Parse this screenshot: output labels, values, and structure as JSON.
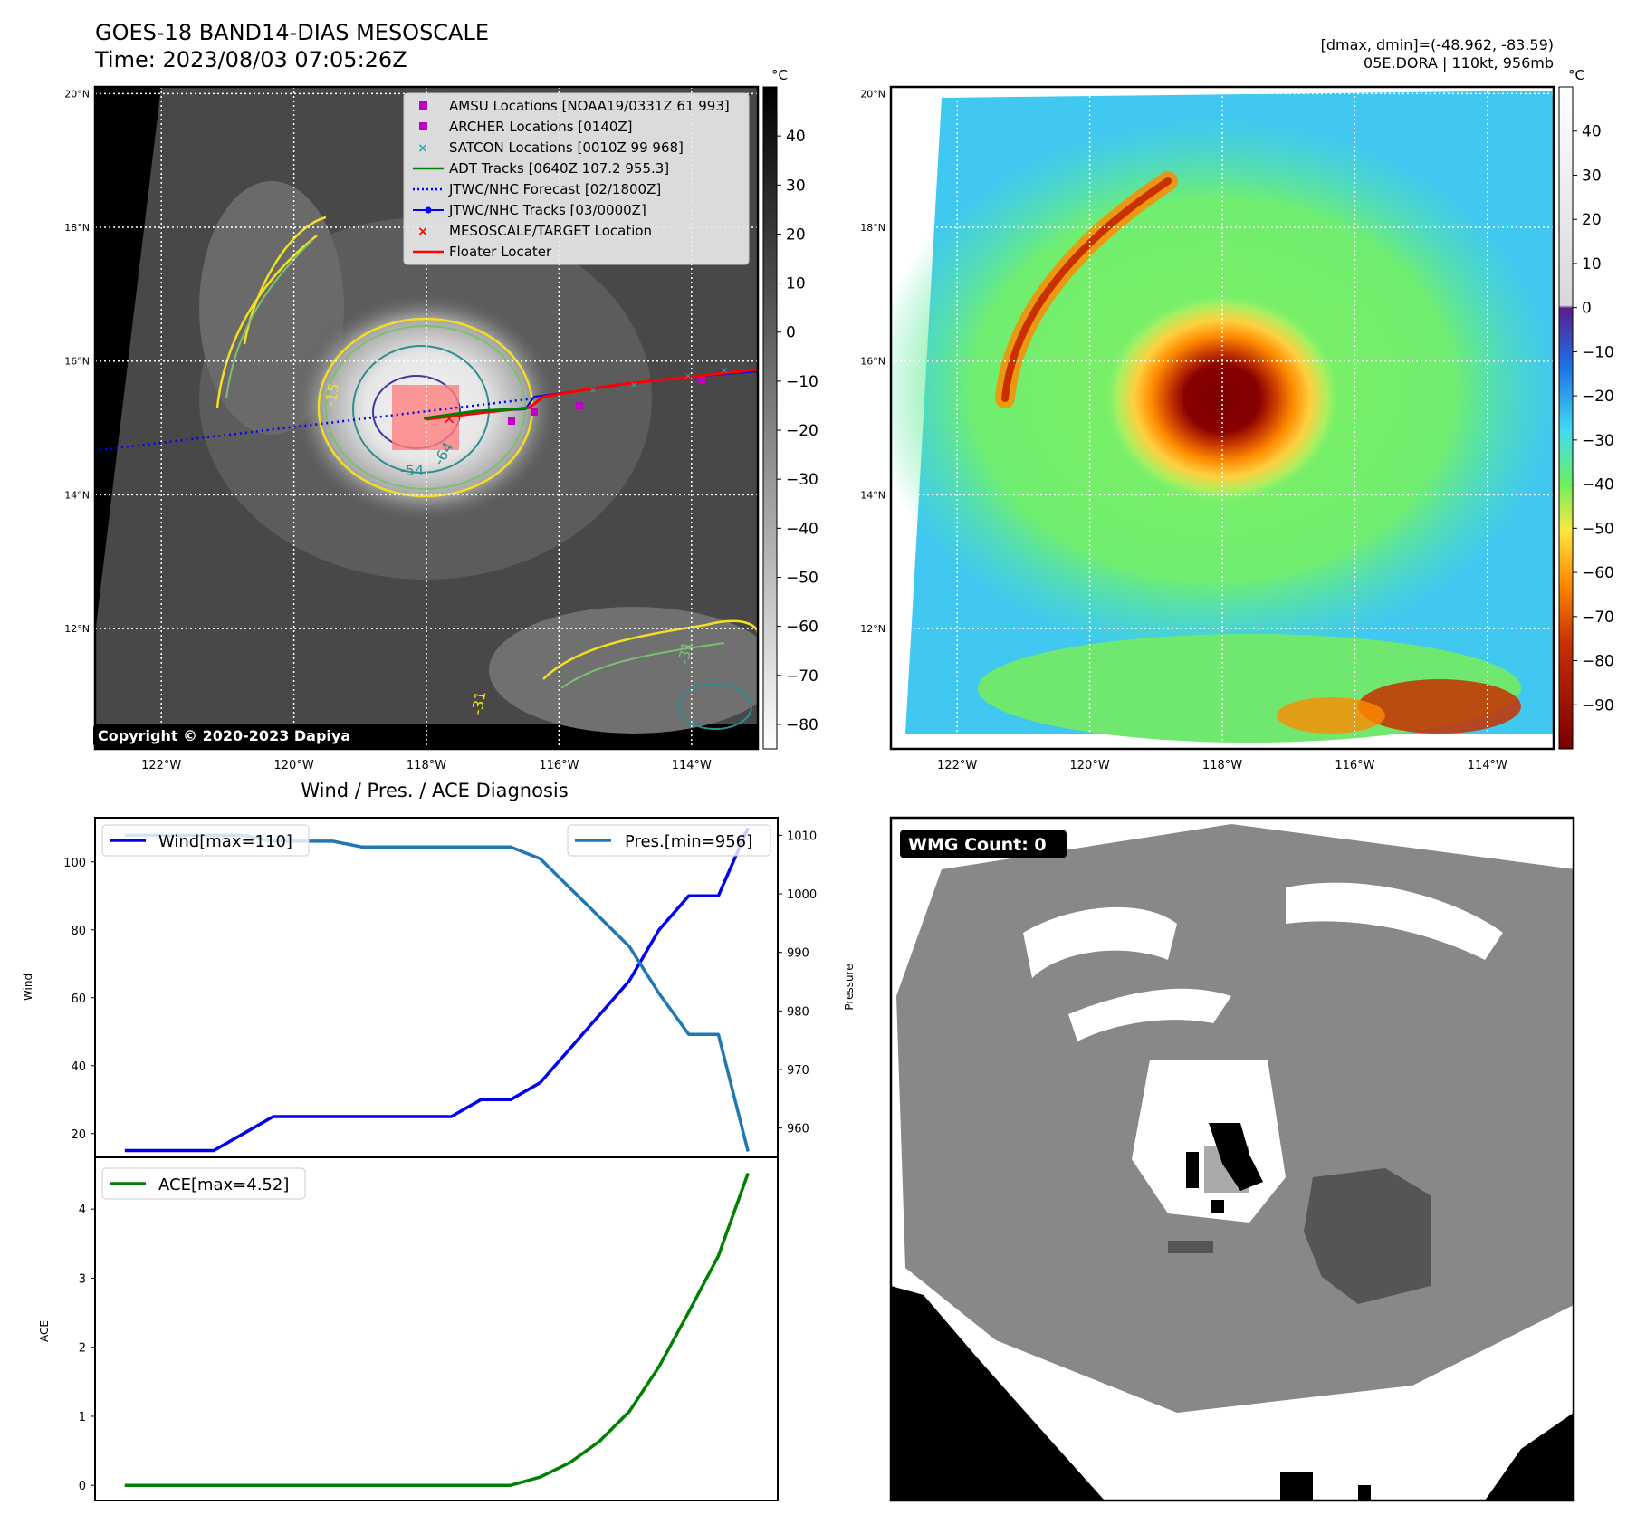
{
  "header": {
    "title": "GOES-18 BAND14-DIAS MESOSCALE",
    "time": "Time: 2023/08/03 07:05:26Z",
    "dminmax": "[dmax, dmin]=(-48.962, -83.59)",
    "storm": "05E.DORA | 110kt, 956mb"
  },
  "map_axes": {
    "lat_ticks": [
      "20°N",
      "18°N",
      "16°N",
      "14°N",
      "12°N"
    ],
    "lon_ticks": [
      "122°W",
      "120°W",
      "118°W",
      "116°W",
      "114°W"
    ],
    "lat_range": [
      10.2,
      20.1
    ],
    "lon_range": [
      -123.0,
      -113.0
    ]
  },
  "gray_colorbar": {
    "unit": "°C",
    "ticks": [
      "40",
      "30",
      "20",
      "10",
      "0",
      "−10",
      "−20",
      "−30",
      "−40",
      "−50",
      "−60",
      "−70",
      "−80"
    ],
    "range": [
      -85,
      50
    ]
  },
  "color_colorbar": {
    "unit": "°C",
    "ticks": [
      "40",
      "30",
      "20",
      "10",
      "0",
      "−10",
      "−20",
      "−30",
      "−40",
      "−50",
      "−60",
      "−70",
      "−80",
      "−90"
    ],
    "range": [
      -100,
      50
    ]
  },
  "legend": [
    {
      "label": "AMSU Locations [NOAA19/0331Z 61 993]",
      "marker": "square",
      "color": "#c000c0"
    },
    {
      "label": "ARCHER Locations [0140Z]",
      "marker": "square",
      "color": "#c000c0"
    },
    {
      "label": "SATCON Locations [0010Z 99 968]",
      "marker": "x",
      "color": "#20b0b0"
    },
    {
      "label": "ADT Tracks [0640Z 107.2 955.3]",
      "marker": "line",
      "color": "#008000"
    },
    {
      "label": "JTWC/NHC Forecast [02/1800Z]",
      "marker": "dotted",
      "color": "#0000ff"
    },
    {
      "label": "JTWC/NHC Tracks [03/0000Z]",
      "marker": "line-dot",
      "color": "#0000ff"
    },
    {
      "label": "MESOSCALE/TARGET Location",
      "marker": "x",
      "color": "#ff0000"
    },
    {
      "label": "Floater Locater",
      "marker": "line",
      "color": "#ff0000"
    }
  ],
  "contour_labels": [
    "-54",
    "-64",
    "-31",
    "-31",
    "-15"
  ],
  "copyright": "Copyright © 2020-2023 Dapiya",
  "wind_panel_title": "Wind / Pres. / ACE Diagnosis",
  "chart_data": [
    {
      "type": "line",
      "name": "wind-pressure",
      "ylabel": "Wind",
      "y2label": "Pressure",
      "ylim": [
        13,
        113
      ],
      "y2lim": [
        955,
        1013
      ],
      "yticks": [
        20,
        40,
        60,
        80,
        100
      ],
      "y2ticks": [
        960,
        970,
        980,
        990,
        1000,
        1010
      ],
      "x": [
        0,
        1,
        2,
        3,
        4,
        5,
        6,
        7,
        8,
        9,
        10,
        11,
        12,
        13,
        14,
        15,
        16,
        17,
        18,
        19,
        20,
        21,
        22
      ],
      "series": [
        {
          "name": "Wind[max=110]",
          "color": "#0000ee",
          "axis": "left",
          "values": [
            15,
            15,
            15,
            15,
            20,
            25,
            25,
            25,
            25,
            25,
            25,
            25,
            30,
            30,
            35,
            45,
            55,
            65,
            80,
            90,
            90,
            110,
            null
          ]
        },
        {
          "name": "Pres.[min=956]",
          "color": "#1f77b4",
          "axis": "right",
          "values": [
            1010,
            1010,
            1010,
            1010,
            1010,
            1009,
            1009,
            1009,
            1008,
            1008,
            1008,
            1008,
            1008,
            1008,
            1006,
            1001,
            996,
            991,
            983,
            976,
            976,
            956,
            null
          ]
        }
      ],
      "xlim": [
        -1,
        22
      ]
    },
    {
      "type": "line",
      "name": "ace",
      "ylabel": "ACE",
      "ylim": [
        -0.22,
        4.75
      ],
      "yticks": [
        0,
        1,
        2,
        3,
        4
      ],
      "x": [
        0,
        1,
        2,
        3,
        4,
        5,
        6,
        7,
        8,
        9,
        10,
        11,
        12,
        13,
        14,
        15,
        16,
        17,
        18,
        19,
        20,
        21,
        22
      ],
      "series": [
        {
          "name": "ACE[max=4.52]",
          "color": "#008000",
          "axis": "left",
          "values": [
            0,
            0,
            0,
            0,
            0,
            0,
            0,
            0,
            0,
            0,
            0,
            0,
            0,
            0,
            0.12,
            0.33,
            0.64,
            1.07,
            1.72,
            2.51,
            3.32,
            4.52,
            null
          ]
        }
      ],
      "xlim": [
        -1,
        22
      ]
    }
  ],
  "wmg": {
    "label": "WMG Count: 0"
  }
}
